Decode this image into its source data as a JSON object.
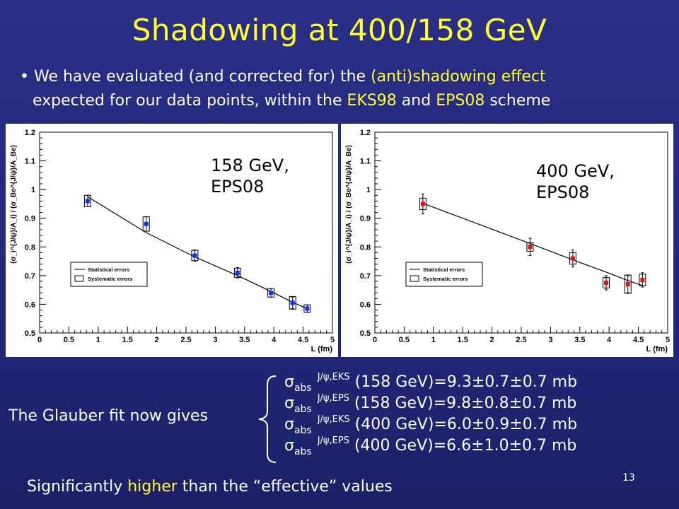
{
  "slide": {
    "title": "Shadowing at 400/158 GeV",
    "bullet": {
      "marker": "•",
      "p1": "We have evaluated (and corrected for) the ",
      "hl1": "(anti)shadowing effect",
      "p2": "expected for our data points, within the ",
      "hl2": "EKS98",
      "p3": " and ",
      "hl3": "EPS08",
      "p4": " scheme"
    },
    "glauber_label": "The Glauber fit now gives",
    "results": [
      {
        "sigma": "σ",
        "sub": "abs",
        "sup": "J/ψ,EKS",
        "value": " (158 GeV)=9.3±0.7±0.7 mb"
      },
      {
        "sigma": "σ",
        "sub": "abs",
        "sup": "J/ψ,EPS",
        "value": " (158 GeV)=9.8±0.8±0.7 mb"
      },
      {
        "sigma": "σ",
        "sub": "abs",
        "sup": "J/ψ,EKS",
        "value": " (400 GeV)=6.0±0.9±0.7 mb"
      },
      {
        "sigma": "σ",
        "sub": "abs",
        "sup": "J/ψ,EPS",
        "value": " (400 GeV)=6.6±1.0±0.7 mb"
      }
    ],
    "conclusion": {
      "p1": "Significantly ",
      "hl": "higher",
      "p2": " than the “effective” values"
    },
    "page_number": "13",
    "colors": {
      "accent": "#ffff33",
      "background": "#2a2f86"
    }
  },
  "chart_data": [
    {
      "type": "scatter",
      "annotation_line1": "158 GeV,",
      "annotation_line2": "EPS08",
      "marker_color": "#1030ff",
      "xlabel": "L (fm)",
      "ylabel": "(σ_i^{J/ψ}/A_i) / (σ_Be^{J/ψ}/A_Be)",
      "xlim": [
        0,
        5
      ],
      "ylim": [
        0.5,
        1.2
      ],
      "xticks": [
        0,
        0.5,
        1,
        1.5,
        2,
        2.5,
        3,
        3.5,
        4,
        4.5,
        5
      ],
      "xtick_labels": [
        "0",
        "0.5",
        "1",
        "1.5",
        "2",
        "2.5",
        "3",
        "3.5",
        "4",
        "4.5",
        "5"
      ],
      "yticks": [
        0.5,
        0.6,
        0.7,
        0.8,
        0.9,
        1,
        1.1,
        1.2
      ],
      "ytick_labels": [
        "0.5",
        "0.6",
        "0.7",
        "0.8",
        "0.9",
        "1",
        "1.1",
        "1.2"
      ],
      "legend": {
        "placement": "lower-left",
        "entries": [
          "Statistical errors",
          "Systematic errors"
        ]
      },
      "points": [
        {
          "x": 0.82,
          "y": 0.96,
          "stat": 0.02,
          "syst": 0.02
        },
        {
          "x": 1.82,
          "y": 0.88,
          "stat": 0.025,
          "syst": 0.025
        },
        {
          "x": 2.65,
          "y": 0.77,
          "stat": 0.02,
          "syst": 0.018
        },
        {
          "x": 3.38,
          "y": 0.71,
          "stat": 0.018,
          "syst": 0.016
        },
        {
          "x": 3.95,
          "y": 0.64,
          "stat": 0.015,
          "syst": 0.015
        },
        {
          "x": 4.32,
          "y": 0.605,
          "stat": 0.02,
          "syst": 0.022
        },
        {
          "x": 4.57,
          "y": 0.585,
          "stat": 0.013,
          "syst": 0.013
        }
      ],
      "fit": [
        [
          0.82,
          0.975
        ],
        [
          1.82,
          0.85
        ],
        [
          2.65,
          0.765
        ],
        [
          3.38,
          0.7
        ],
        [
          3.95,
          0.645
        ],
        [
          4.32,
          0.607
        ],
        [
          4.57,
          0.585
        ]
      ]
    },
    {
      "type": "scatter",
      "annotation_line1": "400 GeV,",
      "annotation_line2": "EPS08",
      "marker_color": "#e01010",
      "xlabel": "L (fm)",
      "ylabel": "(σ_i^{J/ψ}/A_i) / (σ_Be^{J/ψ}/A_Be)",
      "xlim": [
        0,
        5
      ],
      "ylim": [
        0.5,
        1.2
      ],
      "xticks": [
        0,
        0.5,
        1,
        1.5,
        2,
        2.5,
        3,
        3.5,
        4,
        4.5,
        5
      ],
      "xtick_labels": [
        "0",
        "0.5",
        "1",
        "1.5",
        "2",
        "2.5",
        "3",
        "3.5",
        "4",
        "4.5",
        "5"
      ],
      "yticks": [
        0.5,
        0.6,
        0.7,
        0.8,
        0.9,
        1,
        1.1,
        1.2
      ],
      "ytick_labels": [
        "0.5",
        "0.6",
        "0.7",
        "0.8",
        "0.9",
        "1",
        "1.1",
        "1.2"
      ],
      "legend": {
        "placement": "lower-left",
        "entries": [
          "Statistical errors",
          "Systematic errors"
        ]
      },
      "points": [
        {
          "x": 0.82,
          "y": 0.95,
          "stat": 0.035,
          "syst": 0.02
        },
        {
          "x": 2.65,
          "y": 0.8,
          "stat": 0.03,
          "syst": 0.015
        },
        {
          "x": 3.38,
          "y": 0.76,
          "stat": 0.03,
          "syst": 0.02
        },
        {
          "x": 3.95,
          "y": 0.675,
          "stat": 0.025,
          "syst": 0.018
        },
        {
          "x": 4.32,
          "y": 0.67,
          "stat": 0.03,
          "syst": 0.032
        },
        {
          "x": 4.57,
          "y": 0.685,
          "stat": 0.025,
          "syst": 0.02
        }
      ],
      "fit": [
        [
          0.82,
          0.952
        ],
        [
          2.65,
          0.812
        ],
        [
          3.38,
          0.755
        ],
        [
          3.95,
          0.712
        ],
        [
          4.32,
          0.683
        ],
        [
          4.57,
          0.665
        ]
      ]
    }
  ]
}
